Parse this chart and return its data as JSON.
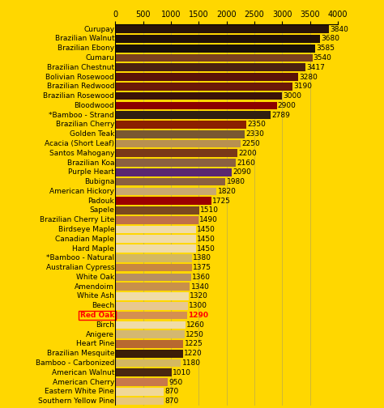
{
  "background_color": "#FFD700",
  "categories": [
    "Southern Yellow Pine",
    "Eastern White Pine",
    "American Cherry",
    "American Walnut",
    "Bamboo - Carbonized",
    "Brazilian Mesquite",
    "Heart Pine",
    "Anigere",
    "Birch",
    "Red Oak",
    "Beech",
    "White Ash",
    "Amendoim",
    "White Oak",
    "Australian Cypress",
    "*Bamboo - Natural",
    "Hard Maple",
    "Canadian Maple",
    "Birdseye Maple",
    "Brazilian Cherry Lite",
    "Sapele",
    "Padouk",
    "American Hickory",
    "Bubigna",
    "Purple Heart",
    "Brazilian Koa",
    "Santos Mahogany",
    "Acacia (Short Leaf)",
    "Golden Teak",
    "Brazilian Cherry",
    "*Bamboo - Strand",
    "Bloodwood",
    "Brazilian Rosewood",
    "Brazilian Redwood",
    "Bolivian Rosewood",
    "Brazilian Chestnut",
    "Cumaru",
    "Brazilian Ebony",
    "Brazilian Walnut",
    "Curupay"
  ],
  "values": [
    870,
    870,
    950,
    1010,
    1180,
    1220,
    1225,
    1250,
    1260,
    1290,
    1300,
    1320,
    1340,
    1360,
    1375,
    1380,
    1450,
    1450,
    1450,
    1490,
    1510,
    1725,
    1820,
    1980,
    2090,
    2160,
    2200,
    2250,
    2330,
    2350,
    2789,
    2900,
    3000,
    3190,
    3280,
    3417,
    3540,
    3585,
    3680,
    3840
  ],
  "bar_colors": [
    "#E8C87A",
    "#F0D898",
    "#C8784A",
    "#4A2810",
    "#D4B860",
    "#3C1E08",
    "#B86830",
    "#D4B870",
    "#F0DCA8",
    "#D49050",
    "#E8C890",
    "#F0DCA8",
    "#C8904A",
    "#B89060",
    "#C88840",
    "#D4B860",
    "#F0DCA8",
    "#F0DCA8",
    "#F0DCA8",
    "#C07048",
    "#7A4820",
    "#9B0000",
    "#C8A870",
    "#8B6040",
    "#5A2870",
    "#8B6040",
    "#7A3818",
    "#B89050",
    "#7A5830",
    "#8B2000",
    "#302010",
    "#8B0000",
    "#3A1208",
    "#6B1808",
    "#5A1208",
    "#4A2010",
    "#7A4020",
    "#181008",
    "#201008",
    "#281408"
  ],
  "red_oak_index": 9,
  "xlim": [
    0,
    4000
  ],
  "xticks": [
    0,
    500,
    1000,
    1500,
    2000,
    2500,
    3000,
    3500,
    4000
  ],
  "label_fontsize": 6.5,
  "value_fontsize": 6.5,
  "tick_fontsize": 7
}
